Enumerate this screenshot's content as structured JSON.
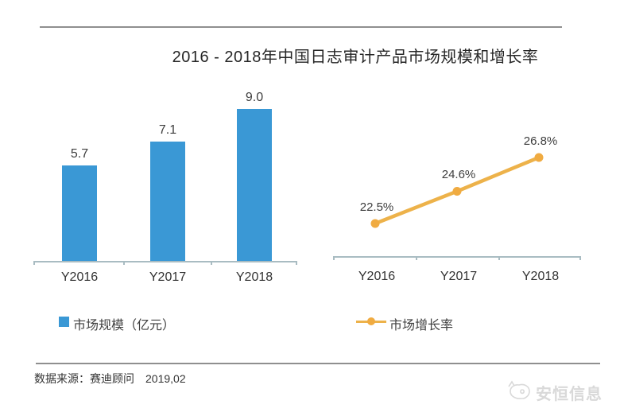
{
  "title": "2016 - 2018年中国日志审计产品市场规模和增长率",
  "colors": {
    "bar": "#3a98d5",
    "line": "#edb24a",
    "marker": "#f0ab41",
    "axis": "#a9bcc2",
    "rule": "#8f8f8f",
    "watermark": "#d9d9d9"
  },
  "chart_data": [
    {
      "type": "bar",
      "name": "市场规模",
      "unit": "亿元",
      "categories": [
        "Y2016",
        "Y2017",
        "Y2018"
      ],
      "values": [
        5.7,
        7.1,
        9.0
      ],
      "value_labels": [
        "5.7",
        "7.1",
        "9.0"
      ],
      "legend": "市场规模（亿元）",
      "ylim": [
        0,
        10
      ],
      "grid": false,
      "legend_position": "bottom"
    },
    {
      "type": "line",
      "name": "市场增长率",
      "categories": [
        "Y2016",
        "Y2017",
        "Y2018"
      ],
      "values": [
        22.5,
        24.6,
        26.8
      ],
      "value_labels": [
        "22.5%",
        "24.6%",
        "26.8%"
      ],
      "legend": "市场增长率",
      "ylim": [
        20,
        28
      ],
      "grid": false,
      "legend_position": "bottom"
    }
  ],
  "footer": {
    "source": "数据来源：赛迪顾问　2019,02",
    "watermark": "安恒信息"
  }
}
